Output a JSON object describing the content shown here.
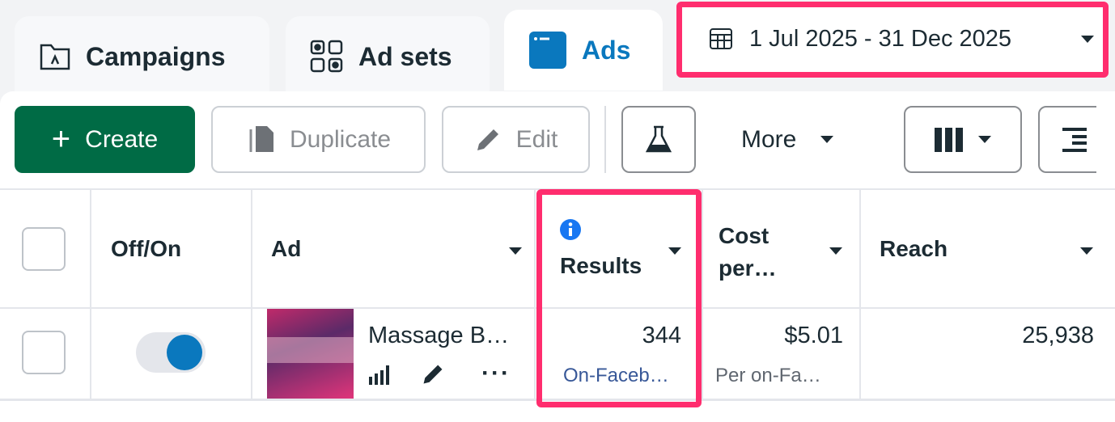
{
  "tabs": [
    {
      "label": "Campaigns",
      "icon": "folder-icon"
    },
    {
      "label": "Ad sets",
      "icon": "grid-icon"
    },
    {
      "label": "Ads",
      "icon": "ad-icon",
      "active": true
    }
  ],
  "date_range": "1 Jul 2025 - 31 Dec 2025",
  "toolbar": {
    "create": "Create",
    "duplicate": "Duplicate",
    "edit": "Edit",
    "more": "More"
  },
  "columns": {
    "toggle": "Off/On",
    "ad": "Ad",
    "results": "Results",
    "cost": "Cost per…",
    "reach": "Reach"
  },
  "rows": [
    {
      "on": true,
      "ad": "Massage B…",
      "results": "344",
      "results_sub": "On-Faceb…",
      "cost": "$5.01",
      "cost_sub": "Per on-Fa…",
      "reach": "25,938"
    }
  ],
  "colors": {
    "accent": "#0a78be",
    "create": "#006b45",
    "highlight": "#ff2d6e"
  }
}
